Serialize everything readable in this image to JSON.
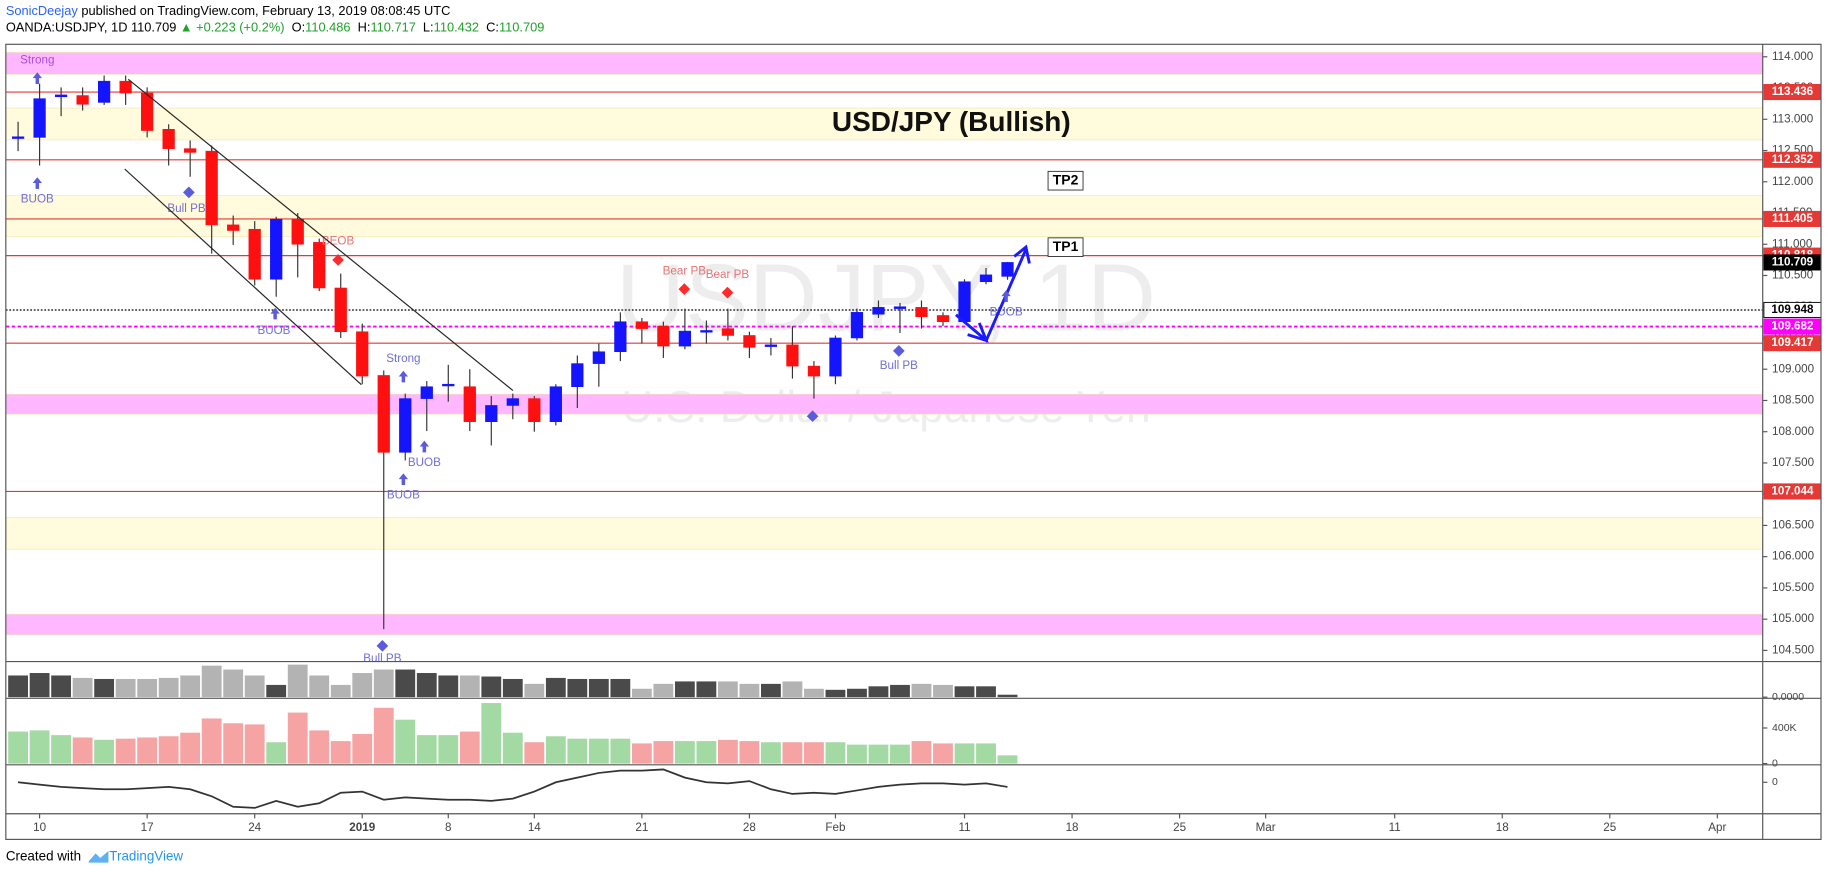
{
  "header": {
    "author": "SonicDeejay",
    "published": "published on TradingView.com, February 13, 2019 08:08:45 UTC",
    "symbol": "OANDA:USDJPY, 1D",
    "last": "110.709",
    "change": "▲ +0.223 (+0.2%)",
    "ohlc": [
      {
        "label": "O:",
        "value": "110.486"
      },
      {
        "label": "H:",
        "value": "110.717"
      },
      {
        "label": "L:",
        "value": "110.432"
      },
      {
        "label": "C:",
        "value": "110.709"
      }
    ]
  },
  "footer": {
    "created": "Created with",
    "brand": "TradingView"
  },
  "chart_data": [
    {
      "type": "candlestick",
      "title": "USD/JPY (Bullish)",
      "watermark": "USDJPY, 1D",
      "watermark_subtitle": "U.S. Dollar / Japanese Yen",
      "open": [
        112.7,
        112.71,
        113.36,
        113.38,
        113.27,
        113.61,
        113.42,
        112.84,
        112.53,
        112.49,
        111.31,
        111.24,
        110.44,
        111.4,
        111.03,
        110.3,
        109.6,
        108.9,
        107.67,
        108.53,
        108.74,
        108.72,
        108.16,
        108.42,
        108.53,
        108.16,
        108.72,
        109.09,
        109.28,
        109.76,
        109.69,
        109.37,
        109.6,
        109.65,
        109.54,
        109.37,
        109.39,
        109.05,
        108.89,
        109.5,
        109.88,
        109.97,
        109.99,
        109.86,
        109.76,
        110.4,
        110.486
      ],
      "high": [
        112.96,
        113.57,
        113.51,
        113.51,
        113.7,
        113.7,
        113.51,
        112.92,
        112.66,
        112.58,
        111.46,
        111.37,
        111.44,
        111.5,
        111.09,
        110.53,
        109.73,
        108.98,
        108.61,
        108.81,
        109.07,
        109.0,
        108.57,
        108.61,
        108.57,
        108.76,
        109.22,
        109.41,
        109.91,
        109.82,
        109.76,
        109.97,
        109.78,
        109.97,
        109.6,
        109.5,
        109.69,
        109.13,
        109.54,
        109.97,
        110.1,
        110.06,
        110.1,
        109.91,
        110.44,
        110.62,
        110.717
      ],
      "low": [
        112.49,
        112.26,
        113.05,
        113.14,
        113.23,
        113.23,
        112.71,
        112.26,
        112.08,
        110.85,
        110.99,
        110.34,
        110.16,
        110.47,
        110.25,
        109.5,
        108.76,
        104.84,
        107.54,
        108.01,
        108.48,
        108.01,
        107.78,
        108.2,
        108.0,
        108.1,
        108.38,
        108.72,
        109.13,
        109.41,
        109.18,
        109.32,
        109.41,
        109.46,
        109.18,
        109.22,
        108.85,
        108.53,
        108.76,
        109.46,
        109.82,
        109.58,
        109.65,
        109.69,
        109.73,
        110.36,
        110.432
      ],
      "close": [
        112.72,
        113.33,
        113.39,
        113.24,
        113.61,
        113.42,
        112.82,
        112.53,
        112.47,
        111.31,
        111.22,
        110.44,
        111.4,
        111.0,
        110.3,
        109.6,
        108.89,
        107.67,
        108.53,
        108.72,
        108.76,
        108.16,
        108.42,
        108.53,
        108.16,
        108.72,
        109.09,
        109.28,
        109.76,
        109.65,
        109.37,
        109.61,
        109.62,
        109.54,
        109.35,
        109.39,
        109.05,
        108.89,
        109.5,
        109.91,
        109.99,
        110.0,
        109.84,
        109.76,
        110.4,
        110.51,
        110.709
      ],
      "up_color": "#1414ff",
      "down_color": "#ff1010",
      "xlim": [
        -0.57,
        81.11
      ],
      "xticks": [
        {
          "value": 1,
          "label": "10"
        },
        {
          "value": 6,
          "label": "17"
        },
        {
          "value": 11,
          "label": "24"
        },
        {
          "value": 16,
          "label": "2019"
        },
        {
          "value": 20,
          "label": "8"
        },
        {
          "value": 24,
          "label": "14"
        },
        {
          "value": 29,
          "label": "21"
        },
        {
          "value": 34,
          "label": "28"
        },
        {
          "value": 38,
          "label": "Feb"
        },
        {
          "value": 44,
          "label": "11"
        },
        {
          "value": 49,
          "label": "18"
        },
        {
          "value": 54,
          "label": "25"
        },
        {
          "value": 58,
          "label": "Mar"
        },
        {
          "value": 64,
          "label": "11"
        },
        {
          "value": 69,
          "label": "18"
        },
        {
          "value": 74,
          "label": "25"
        },
        {
          "value": 79,
          "label": "Apr"
        }
      ],
      "ylim": [
        104.33,
        114.2
      ],
      "yticks": [
        {
          "value": 104.5,
          "label": "104.500"
        },
        {
          "value": 105,
          "label": "105.000"
        },
        {
          "value": 105.5,
          "label": "105.500"
        },
        {
          "value": 106,
          "label": "106.000"
        },
        {
          "value": 106.5,
          "label": "106.500"
        },
        {
          "value": 107,
          "label": "107.000"
        },
        {
          "value": 107.5,
          "label": "107.500"
        },
        {
          "value": 108,
          "label": "108.000"
        },
        {
          "value": 108.5,
          "label": "108.500"
        },
        {
          "value": 109,
          "label": "109.000"
        },
        {
          "value": 109.5,
          "label": "109.500"
        },
        {
          "value": 110,
          "label": "110.000"
        },
        {
          "value": 110.5,
          "label": "110.500"
        },
        {
          "value": 111,
          "label": "111.000"
        },
        {
          "value": 111.5,
          "label": "111.500"
        },
        {
          "value": 112,
          "label": "112.000"
        },
        {
          "value": 112.5,
          "label": "112.500"
        },
        {
          "value": 113,
          "label": "113.000"
        },
        {
          "value": 113.5,
          "label": "113.500"
        },
        {
          "value": 114,
          "label": "114.000"
        }
      ],
      "zones": [
        {
          "from": 114.07,
          "to": 113.72,
          "color": "#ffb8ff"
        },
        {
          "from": 113.18,
          "to": 112.67,
          "color": "#fffbdc"
        },
        {
          "from": 111.78,
          "to": 111.12,
          "color": "#fffbdc"
        },
        {
          "from": 108.6,
          "to": 108.28,
          "color": "#ffb8ff"
        },
        {
          "from": 106.63,
          "to": 106.12,
          "color": "#fffbdc"
        },
        {
          "from": 105.08,
          "to": 104.75,
          "color": "#ffb8ff"
        }
      ],
      "levels": [
        {
          "value": 113.436,
          "label": "113.436",
          "color": "#e53935",
          "style": "solid"
        },
        {
          "value": 112.352,
          "label": "112.352",
          "color": "#e53935",
          "style": "solid"
        },
        {
          "value": 111.405,
          "label": "111.405",
          "color": "#e53935",
          "style": "solid"
        },
        {
          "value": 110.818,
          "label": "110.818",
          "color": "#e53935",
          "style": "solid"
        },
        {
          "value": 109.948,
          "label": "109.948",
          "color": "#000000",
          "style": "dotted"
        },
        {
          "value": 109.682,
          "label": "109.682",
          "color": "#ff00ff",
          "style": "dashed"
        },
        {
          "value": 109.417,
          "label": "109.417",
          "color": "#e53935",
          "style": "solid"
        },
        {
          "value": 107.044,
          "label": "107.044",
          "color": "#e53935",
          "style": "solid"
        }
      ],
      "last_price": {
        "value": 110.709,
        "label": "110.709"
      },
      "annotations": [
        "Strong",
        "BUOB",
        "Bull PB",
        "BUOB",
        "BEOB",
        "Strong",
        "BUOB",
        "BUOB",
        "Bull PB",
        "Bear PB",
        "Bear PB",
        "Bull PB",
        "BUOB",
        "TP2",
        "TP1"
      ]
    },
    {
      "type": "bar",
      "values": [
        0.62,
        0.69,
        0.62,
        0.55,
        0.52,
        0.52,
        0.52,
        0.55,
        0.62,
        0.9,
        0.79,
        0.62,
        0.35,
        0.93,
        0.62,
        0.35,
        0.69,
        0.79,
        0.79,
        0.69,
        0.62,
        0.62,
        0.59,
        0.52,
        0.38,
        0.55,
        0.52,
        0.52,
        0.52,
        0.24,
        0.38,
        0.45,
        0.45,
        0.45,
        0.38,
        0.38,
        0.45,
        0.24,
        0.21,
        0.24,
        0.31,
        0.35,
        0.38,
        0.35,
        0.31,
        0.31,
        0.07
      ],
      "ylim": [
        0,
        1
      ],
      "yticks": [
        {
          "value": 0,
          "label": "0.0000"
        }
      ],
      "up_color": "#4a4a4a",
      "down_color": "#b3b3b3"
    },
    {
      "type": "bar",
      "values": [
        360,
        373,
        320,
        293,
        267,
        280,
        293,
        307,
        347,
        507,
        453,
        440,
        240,
        573,
        373,
        253,
        333,
        627,
        493,
        320,
        320,
        360,
        680,
        347,
        240,
        307,
        280,
        280,
        280,
        227,
        253,
        253,
        253,
        267,
        253,
        240,
        240,
        240,
        240,
        213,
        213,
        213,
        253,
        227,
        227,
        227,
        93
      ],
      "ylim": [
        0,
        720
      ],
      "yticks": [
        0,
        {
          "value": 400,
          "label": "400K"
        }
      ],
      "up_color": "#a3d9a3",
      "down_color": "#f5a3a3"
    },
    {
      "type": "line",
      "values": [
        0,
        -2,
        -4,
        -5,
        -6,
        -6,
        -5,
        -4,
        -6,
        -12,
        -21,
        -22,
        -16,
        -21,
        -18,
        -9,
        -8,
        -15,
        -13,
        -14,
        -15,
        -15,
        -16,
        -14,
        -8,
        0,
        4,
        8,
        10,
        10,
        11,
        4,
        0,
        -1,
        1,
        -6,
        -10,
        -9,
        -10,
        -7,
        -4,
        -2,
        -1,
        -1,
        -2,
        -1,
        -4
      ],
      "ylim": [
        -26,
        14
      ],
      "yticks": [
        0
      ],
      "color": "#333333"
    }
  ]
}
